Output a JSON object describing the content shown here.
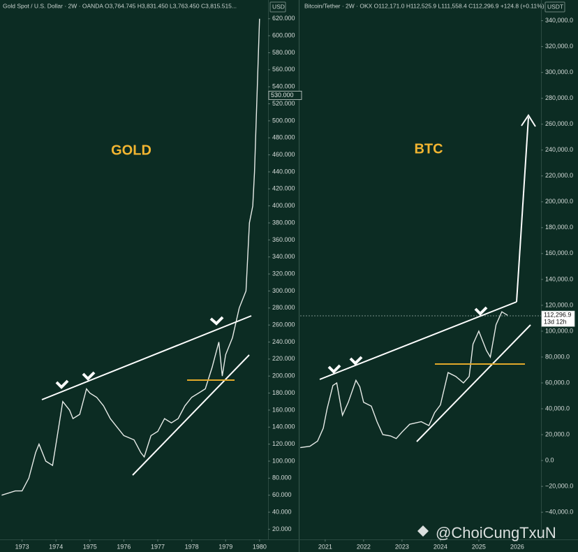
{
  "chart_data": [
    {
      "type": "line",
      "header": "Gold Spot / U.S. Dollar · 2W · OANDA  O3,764.745  H3,831.450  L3,763.450  C3,815.515...",
      "currency": "USD",
      "annotation": "GOLD",
      "color": "#e8ece9",
      "x": [
        1972.4,
        1972.8,
        1973.0,
        1973.2,
        1973.4,
        1973.5,
        1973.7,
        1973.9,
        1974.0,
        1974.2,
        1974.4,
        1974.5,
        1974.7,
        1974.9,
        1975.0,
        1975.2,
        1975.4,
        1975.6,
        1975.8,
        1976.0,
        1976.3,
        1976.5,
        1976.6,
        1976.8,
        1977.0,
        1977.2,
        1977.4,
        1977.6,
        1977.8,
        1978.0,
        1978.2,
        1978.4,
        1978.6,
        1978.8,
        1978.9,
        1979.0,
        1979.2,
        1979.4,
        1979.6,
        1979.7,
        1979.8,
        1979.85,
        1979.9,
        1980.0
      ],
      "values": [
        60,
        65,
        65,
        80,
        110,
        120,
        100,
        95,
        120,
        170,
        160,
        150,
        155,
        185,
        180,
        175,
        165,
        150,
        140,
        130,
        125,
        110,
        105,
        130,
        135,
        150,
        145,
        150,
        165,
        175,
        180,
        185,
        210,
        240,
        200,
        225,
        245,
        280,
        300,
        380,
        400,
        440,
        500,
        620
      ],
      "xlim": [
        1972.35,
        1980.25
      ],
      "xticks": [
        1973,
        1974,
        1975,
        1976,
        1977,
        1978,
        1979,
        1980
      ],
      "ylim": [
        8,
        642
      ],
      "yticks": [
        {
          "value": 620,
          "label": "620.000"
        },
        {
          "value": 600,
          "label": "600.000"
        },
        {
          "value": 580,
          "label": "580.000"
        },
        {
          "value": 560,
          "label": "560.000"
        },
        {
          "value": 540,
          "label": "540.000"
        },
        {
          "value": 520,
          "label": "520.000"
        },
        {
          "value": 500,
          "label": "500.000"
        },
        {
          "value": 480,
          "label": "480.000"
        },
        {
          "value": 460,
          "label": "460.000"
        },
        {
          "value": 440,
          "label": "440.000"
        },
        {
          "value": 420,
          "label": "420.000"
        },
        {
          "value": 400,
          "label": "400.000"
        },
        {
          "value": 380,
          "label": "380.000"
        },
        {
          "value": 360,
          "label": "360.000"
        },
        {
          "value": 340,
          "label": "340.000"
        },
        {
          "value": 320,
          "label": "320.000"
        },
        {
          "value": 300,
          "label": "300.000"
        },
        {
          "value": 280,
          "label": "280.000"
        },
        {
          "value": 260,
          "label": "260.000"
        },
        {
          "value": 240,
          "label": "240.000"
        },
        {
          "value": 220,
          "label": "220.000"
        },
        {
          "value": 200,
          "label": "200.000"
        },
        {
          "value": 180,
          "label": "180.000"
        },
        {
          "value": 160,
          "label": "160.000"
        },
        {
          "value": 140,
          "label": "140.000"
        },
        {
          "value": 120,
          "label": "120.000"
        },
        {
          "value": 100,
          "label": "100.000"
        },
        {
          "value": 80,
          "label": "80.000"
        },
        {
          "value": 60,
          "label": "60.000"
        },
        {
          "value": 40,
          "label": "40.000"
        },
        {
          "value": 20,
          "label": "20.000"
        }
      ],
      "price_label": {
        "value": 530,
        "label": "530.000"
      }
    },
    {
      "type": "line",
      "header": "Bitcoin/Tether · 2W · OKX  O112,171.0  H112,525.9  L111,558.4  C112,296.9  +124.8 (+0.11%)",
      "currency": "USDT",
      "annotation": "BTC",
      "color": "#e8ece9",
      "x": [
        2020.35,
        2020.6,
        2020.8,
        2020.95,
        2021.05,
        2021.2,
        2021.3,
        2021.45,
        2021.6,
        2021.8,
        2021.9,
        2022.0,
        2022.2,
        2022.35,
        2022.5,
        2022.7,
        2022.85,
        2023.0,
        2023.2,
        2023.5,
        2023.7,
        2023.85,
        2024.0,
        2024.2,
        2024.4,
        2024.6,
        2024.75,
        2024.85,
        2025.0,
        2025.2,
        2025.3,
        2025.45,
        2025.6,
        2025.75
      ],
      "values": [
        10000,
        11000,
        15000,
        25000,
        40000,
        58000,
        60000,
        35000,
        45000,
        62000,
        57000,
        45000,
        42000,
        30000,
        20000,
        19000,
        17000,
        22000,
        28000,
        30000,
        27000,
        37000,
        43000,
        68000,
        65000,
        60000,
        65000,
        90000,
        100000,
        85000,
        80000,
        105000,
        115000,
        112296.9
      ],
      "xlim": [
        2020.33,
        2026.62
      ],
      "xticks": [
        2021,
        2022,
        2023,
        2024,
        2025,
        2026
      ],
      "ylim": [
        -61000,
        356000
      ],
      "yticks": [
        {
          "value": 340000,
          "label": "340,000.0"
        },
        {
          "value": 320000,
          "label": "320,000.0"
        },
        {
          "value": 300000,
          "label": "300,000.0"
        },
        {
          "value": 280000,
          "label": "280,000.0"
        },
        {
          "value": 260000,
          "label": "260,000.0"
        },
        {
          "value": 240000,
          "label": "240,000.0"
        },
        {
          "value": 220000,
          "label": "220,000.0"
        },
        {
          "value": 200000,
          "label": "200,000.0"
        },
        {
          "value": 180000,
          "label": "180,000.0"
        },
        {
          "value": 160000,
          "label": "160,000.0"
        },
        {
          "value": 140000,
          "label": "140,000.0"
        },
        {
          "value": 120000,
          "label": "120,000.0"
        },
        {
          "value": 100000,
          "label": "100,000.0"
        },
        {
          "value": 80000,
          "label": "80,000.0"
        },
        {
          "value": 60000,
          "label": "60,000.0"
        },
        {
          "value": 40000,
          "label": "40,000.0"
        },
        {
          "value": 20000,
          "label": "20,000.0"
        },
        {
          "value": 0,
          "label": "0.0"
        },
        {
          "value": -20000,
          "label": "−20,000.0"
        },
        {
          "value": -40000,
          "label": "−40,000.0"
        }
      ],
      "price_label": {
        "value": 112296.9,
        "label": "112,296.9"
      },
      "countdown": "13d 12h"
    }
  ],
  "watermark": "@ChoiCungTxuN"
}
